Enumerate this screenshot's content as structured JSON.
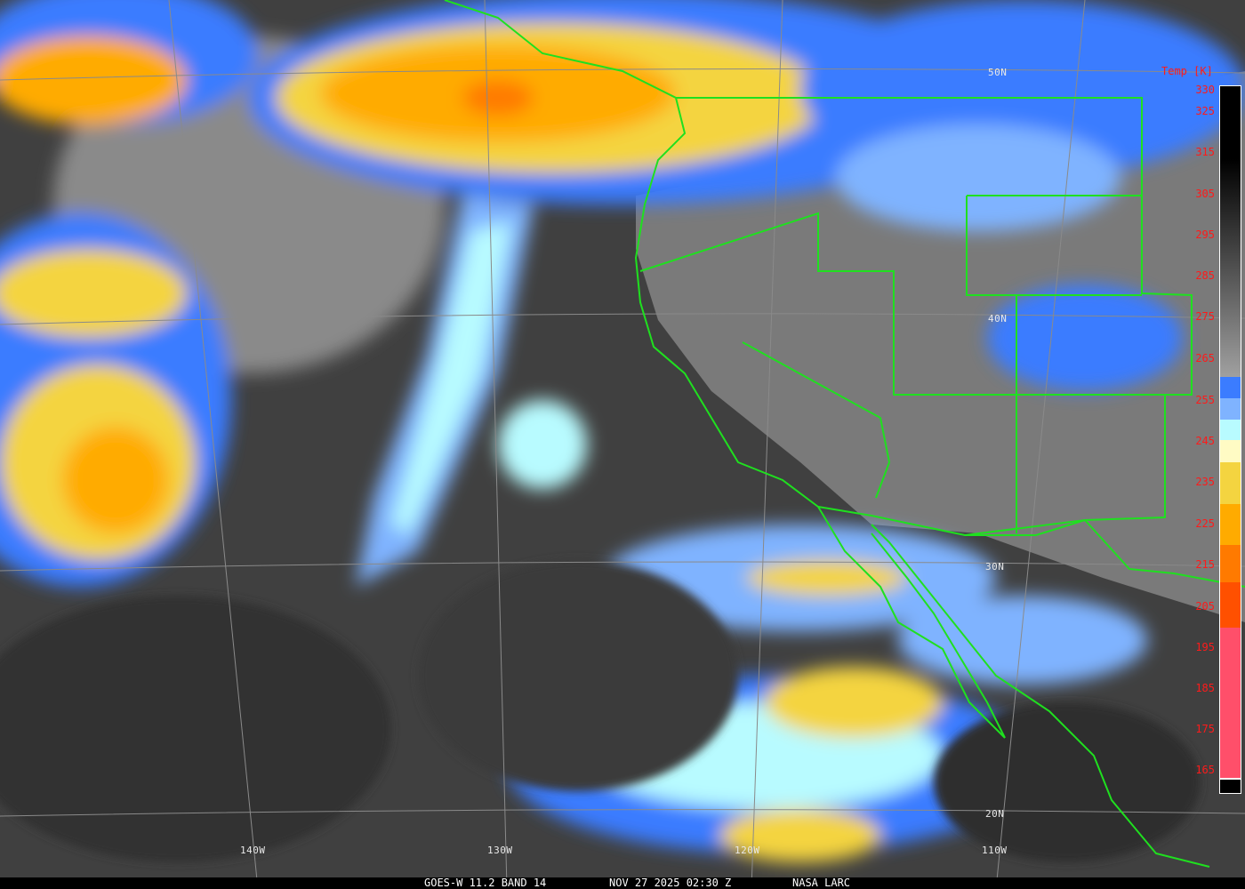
{
  "caption": {
    "satellite_band": "GOES-W 11.2 BAND 14",
    "datetime": "NOV 27 2025 02:30 Z",
    "credit": "NASA LARC"
  },
  "grid_labels": {
    "lat": [
      "50N",
      "40N",
      "30N",
      "20N"
    ],
    "lon": [
      "140W",
      "130W",
      "120W",
      "110W"
    ]
  },
  "colorbar": {
    "title": "Temp [K]",
    "ticks": [
      "330",
      "325",
      "315",
      "305",
      "295",
      "285",
      "275",
      "265",
      "255",
      "245",
      "235",
      "225",
      "215",
      "205",
      "195",
      "185",
      "175",
      "165"
    ],
    "colors": {
      "warm_gray_top": "#000000",
      "warm_gray_bottom": "#a0a0a0",
      "blue": "#3b7cff",
      "light_blue": "#7fb3ff",
      "cyan": "#b8fbff",
      "cream": "#fffbc4",
      "yellow": "#f4d440",
      "orange": "#ffab00",
      "dark_orange": "#ff7a00",
      "red_orange": "#ff5000",
      "pink": "#ff4f6a"
    }
  },
  "colors": {
    "borders": "#1fe01f",
    "grid": "#8a8a8a",
    "labels": "#ff1a1a"
  }
}
